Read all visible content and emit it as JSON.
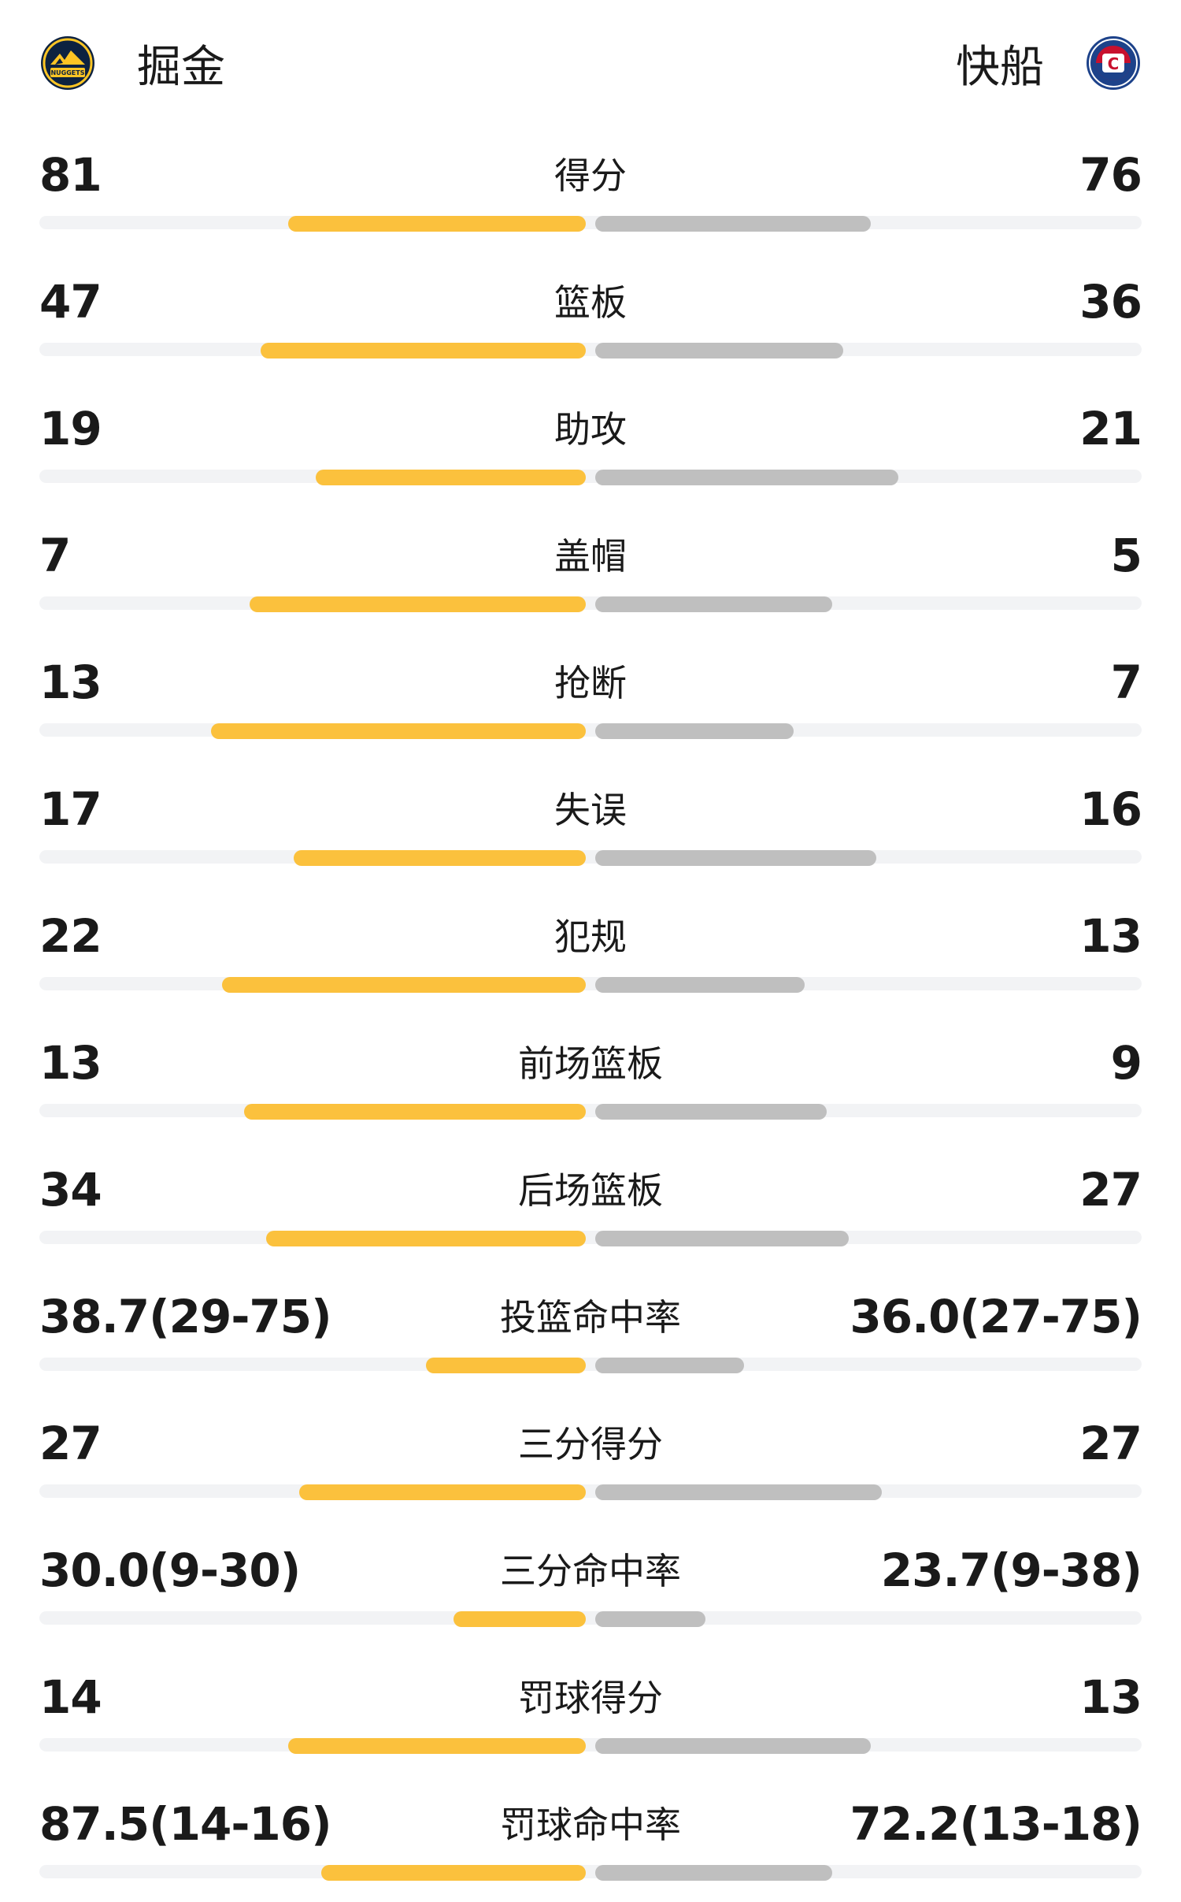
{
  "header": {
    "home": {
      "name": "掘金",
      "logo_icon": "nuggets-logo-icon",
      "logo_text": "NUGGETS"
    },
    "away": {
      "name": "快船",
      "logo_icon": "clippers-logo-icon",
      "logo_text": "C"
    }
  },
  "colors": {
    "home_bar": "#fbc13d",
    "away_bar": "#bfbfbf",
    "track": "#f2f3f5"
  },
  "stats": [
    {
      "label": "得分",
      "home": "81",
      "away": "76",
      "home_fill": 0.54,
      "away_fill": 0.5
    },
    {
      "label": "篮板",
      "home": "47",
      "away": "36",
      "home_fill": 0.59,
      "away_fill": 0.45
    },
    {
      "label": "助攻",
      "home": "19",
      "away": "21",
      "home_fill": 0.49,
      "away_fill": 0.55
    },
    {
      "label": "盖帽",
      "home": "7",
      "away": "5",
      "home_fill": 0.61,
      "away_fill": 0.43
    },
    {
      "label": "抢断",
      "home": "13",
      "away": "7",
      "home_fill": 0.68,
      "away_fill": 0.36
    },
    {
      "label": "失误",
      "home": "17",
      "away": "16",
      "home_fill": 0.53,
      "away_fill": 0.51
    },
    {
      "label": "犯规",
      "home": "22",
      "away": "13",
      "home_fill": 0.66,
      "away_fill": 0.38
    },
    {
      "label": "前场篮板",
      "home": "13",
      "away": "9",
      "home_fill": 0.62,
      "away_fill": 0.42
    },
    {
      "label": "后场篮板",
      "home": "34",
      "away": "27",
      "home_fill": 0.58,
      "away_fill": 0.46
    },
    {
      "label": "投篮命中率",
      "home": "38.7(29-75)",
      "away": "36.0(27-75)",
      "home_fill": 0.29,
      "away_fill": 0.27
    },
    {
      "label": "三分得分",
      "home": "27",
      "away": "27",
      "home_fill": 0.52,
      "away_fill": 0.52
    },
    {
      "label": "三分命中率",
      "home": "30.0(9-30)",
      "away": "23.7(9-38)",
      "home_fill": 0.24,
      "away_fill": 0.2
    },
    {
      "label": "罚球得分",
      "home": "14",
      "away": "13",
      "home_fill": 0.54,
      "away_fill": 0.5
    },
    {
      "label": "罚球命中率",
      "home": "87.5(14-16)",
      "away": "72.2(13-18)",
      "home_fill": 0.48,
      "away_fill": 0.43
    }
  ]
}
